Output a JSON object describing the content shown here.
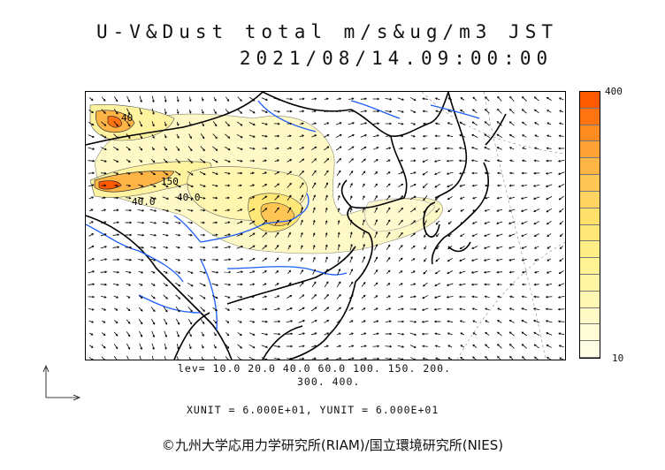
{
  "title": {
    "line1": "U-V&Dust total m/s&ug/m3 JST",
    "line2": "2021/08/14.09:00:00"
  },
  "colorbar": {
    "max_label": "400",
    "min_label": "10",
    "colors": [
      "#ff5a00",
      "#ff7410",
      "#ff8c20",
      "#ffa235",
      "#ffb545",
      "#ffc655",
      "#ffd460",
      "#ffe06a",
      "#ffe878",
      "#ffee85",
      "#fff394",
      "#fff6a4",
      "#fff8b5",
      "#fffac6",
      "#fffcd6",
      "#fffde4"
    ]
  },
  "contour_labels": [
    "40",
    "150",
    "40.0",
    "40.0"
  ],
  "levels": {
    "line1": "lev= 10.0 20.0 40.0 60.0 100. 150. 200.",
    "line2": "300. 400."
  },
  "units": "XUNIT = 6.000E+01, YUNIT = 6.000E+01",
  "credit": "©九州大学応用力学研究所(RIAM)/国立環境研究所(NIES)"
}
